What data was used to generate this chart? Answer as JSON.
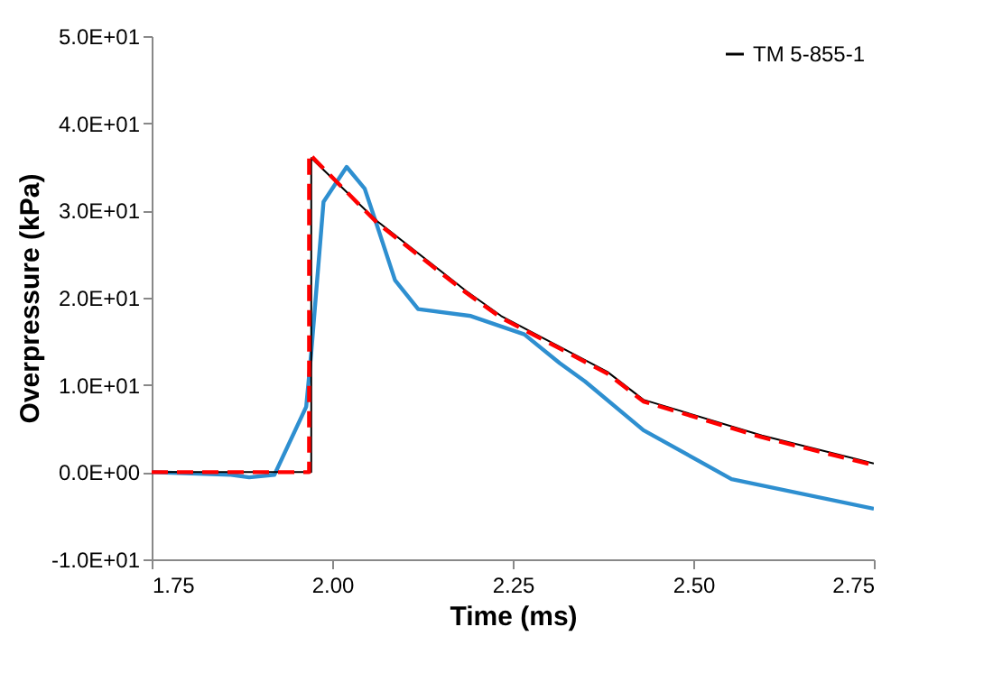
{
  "chart_data": {
    "type": "line",
    "xlabel": "Time (ms)",
    "ylabel": "Overpressure (kPa)",
    "xlim": [
      1.75,
      2.75
    ],
    "xticks": [
      {
        "value": 1.75,
        "label": "1.75"
      },
      {
        "value": 2,
        "label": "2.00"
      },
      {
        "value": 2.25,
        "label": "2.25"
      },
      {
        "value": 2.5,
        "label": "2.50"
      },
      {
        "value": 2.75,
        "label": "2.75"
      }
    ],
    "ylim": [
      -10,
      50
    ],
    "yticks": [
      {
        "value": -10,
        "label": "-1.0E+01"
      },
      {
        "value": 0,
        "label": "0.0E+00"
      },
      {
        "value": 10,
        "label": "1.0E+01"
      },
      {
        "value": 20,
        "label": "2.0E+01"
      },
      {
        "value": 30,
        "label": "3.0E+01"
      },
      {
        "value": 40,
        "label": "4.0E+01"
      },
      {
        "value": 50,
        "label": "5.0E+01"
      }
    ],
    "legend": "top right",
    "grid": false,
    "marker": "none",
    "series": [
      {
        "color": "#2e8fd0",
        "line_style": "solid",
        "x": [
          1.75,
          1.86,
          1.885,
          1.92,
          1.964,
          1.971,
          1.988,
          2.02,
          2.045,
          2.062,
          2.087,
          2.119,
          2.192,
          2.234,
          2.266,
          2.315,
          2.35,
          2.431,
          2.553,
          2.75
        ],
        "values": [
          0,
          -0.3,
          -0.6,
          -0.3,
          7.5,
          13.7,
          31,
          35,
          32.5,
          28.3,
          22,
          18.7,
          17.9,
          16.7,
          15.8,
          12.5,
          10.4,
          4.8,
          -0.8,
          -4.2
        ]
      },
      {
        "name": "TM 5-855-1",
        "color": "#000000",
        "line_style": "solid",
        "x": [
          1.75,
          1.971,
          1.971,
          2.062,
          2.185,
          2.234,
          2.381,
          2.431,
          2.595,
          2.75
        ],
        "values": [
          0,
          0,
          36,
          28.8,
          20.8,
          17.9,
          11.5,
          8.3,
          4.2,
          1.0
        ]
      },
      {
        "color": "#ff0000",
        "line_style": "dashed",
        "x": [
          1.75,
          1.968,
          1.968,
          2.062,
          2.185,
          2.234,
          2.381,
          2.431,
          2.595,
          2.75
        ],
        "values": [
          0,
          0,
          36.5,
          28.6,
          20.6,
          17.7,
          11.3,
          8.1,
          4.0,
          0.8
        ]
      }
    ]
  }
}
